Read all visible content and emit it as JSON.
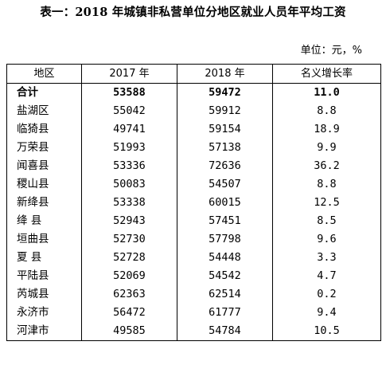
{
  "title": "表一：2018 年城镇非私营单位分地区就业人员年平均工资",
  "unit_label": "单位：元，%",
  "table": {
    "headers": [
      "地区",
      "2017 年",
      "2018 年",
      "名义增长率"
    ],
    "rows": [
      {
        "region": "合计",
        "y2017": "53588",
        "y2018": "59472",
        "growth": "11.0"
      },
      {
        "region": "盐湖区",
        "y2017": "55042",
        "y2018": "59912",
        "growth": "8.8"
      },
      {
        "region": "临猗县",
        "y2017": "49741",
        "y2018": "59154",
        "growth": "18.9"
      },
      {
        "region": "万荣县",
        "y2017": "51993",
        "y2018": "57138",
        "growth": "9.9"
      },
      {
        "region": "闻喜县",
        "y2017": "53336",
        "y2018": "72636",
        "growth": "36.2"
      },
      {
        "region": "稷山县",
        "y2017": "50083",
        "y2018": "54507",
        "growth": "8.8"
      },
      {
        "region": "新绛县",
        "y2017": "53338",
        "y2018": "60015",
        "growth": "12.5"
      },
      {
        "region": "绛  县",
        "y2017": "52943",
        "y2018": "57451",
        "growth": "8.5"
      },
      {
        "region": "垣曲县",
        "y2017": "52730",
        "y2018": "57798",
        "growth": "9.6"
      },
      {
        "region": "夏  县",
        "y2017": "52728",
        "y2018": "54448",
        "growth": "3.3"
      },
      {
        "region": "平陆县",
        "y2017": "52069",
        "y2018": "54542",
        "growth": "4.7"
      },
      {
        "region": "芮城县",
        "y2017": "62363",
        "y2018": "62514",
        "growth": "0.2"
      },
      {
        "region": "永济市",
        "y2017": "56472",
        "y2018": "61777",
        "growth": "9.4"
      },
      {
        "region": "河津市",
        "y2017": "49585",
        "y2018": "54784",
        "growth": "10.5"
      }
    ]
  }
}
